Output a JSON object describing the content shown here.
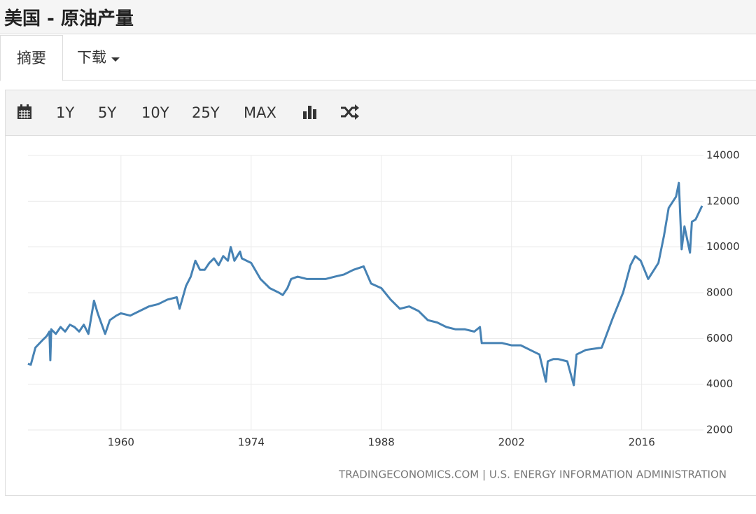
{
  "header": {
    "title": "美国 - 原油产量"
  },
  "tabs": [
    "摘要",
    "下载"
  ],
  "toolbar": [
    "1Y",
    "5Y",
    "10Y",
    "25Y",
    "MAX"
  ],
  "chart_data": {
    "type": "line",
    "source": "TRADINGECONOMICS.COM | U.S. ENERGY INFORMATION ADMINISTRATION",
    "color": "#4682b4",
    "x": [
      1950.0,
      1950.3,
      1950.8,
      1951.5,
      1952.0,
      1952.3,
      1952.4,
      1952.5,
      1953.0,
      1953.5,
      1954.0,
      1954.5,
      1955.0,
      1955.5,
      1956.0,
      1956.5,
      1957.1,
      1957.5,
      1958.3,
      1958.8,
      1959.5,
      1960.0,
      1961.0,
      1962.0,
      1963.0,
      1964.0,
      1965.0,
      1966.0,
      1966.3,
      1967.0,
      1967.5,
      1968.0,
      1968.5,
      1969.0,
      1969.5,
      1970.0,
      1970.5,
      1971.0,
      1971.5,
      1971.8,
      1972.2,
      1972.8,
      1973.0,
      1974.0,
      1975.0,
      1976.0,
      1977.0,
      1977.4,
      1977.9,
      1978.3,
      1979.0,
      1980.0,
      1981.0,
      1982.0,
      1983.0,
      1984.0,
      1985.0,
      1986.1,
      1986.9,
      1988.0,
      1989.0,
      1990.0,
      1991.0,
      1992.0,
      1993.0,
      1994.0,
      1995.0,
      1996.0,
      1997.0,
      1998.0,
      1998.6,
      1998.8,
      2000.0,
      2001.0,
      2002.0,
      2003.0,
      2004.0,
      2005.0,
      2005.7,
      2005.9,
      2006.5,
      2007.0,
      2008.0,
      2008.7,
      2009.0,
      2010.0,
      2011.7,
      2012.9,
      2014.0,
      2014.8,
      2015.3,
      2015.9,
      2016.7,
      2017.8,
      2018.4,
      2018.9,
      2019.7,
      2020.0,
      2020.3,
      2020.6,
      2021.2,
      2021.4,
      2021.8,
      2022.5
    ],
    "values": [
      4900,
      4850,
      5600,
      5900,
      6100,
      6300,
      5050,
      6400,
      6200,
      6500,
      6300,
      6600,
      6500,
      6300,
      6600,
      6200,
      7650,
      7100,
      6200,
      6800,
      7000,
      7100,
      7000,
      7200,
      7400,
      7500,
      7700,
      7800,
      7300,
      8300,
      8700,
      9400,
      9000,
      9000,
      9300,
      9500,
      9200,
      9600,
      9400,
      10000,
      9400,
      9800,
      9500,
      9300,
      8600,
      8200,
      8000,
      7900,
      8200,
      8600,
      8700,
      8600,
      8600,
      8600,
      8700,
      8800,
      9000,
      9150,
      8400,
      8200,
      7700,
      7300,
      7400,
      7200,
      6800,
      6700,
      6500,
      6400,
      6400,
      6300,
      6500,
      5800,
      5800,
      5800,
      5700,
      5700,
      5500,
      5300,
      4110,
      5000,
      5100,
      5100,
      5000,
      3960,
      5300,
      5500,
      5600,
      6900,
      8000,
      9200,
      9600,
      9400,
      8600,
      9300,
      10500,
      11700,
      12200,
      12800,
      9900,
      10900,
      9750,
      11100,
      11200,
      11800
    ],
    "xlim": [
      1950,
      2022.8
    ],
    "xticks": [
      1960,
      1974,
      1988,
      2002,
      2016
    ],
    "ylim": [
      2000,
      14000
    ],
    "yticks": [
      2000,
      4000,
      6000,
      8000,
      10000,
      12000,
      14000
    ],
    "grid": true
  }
}
